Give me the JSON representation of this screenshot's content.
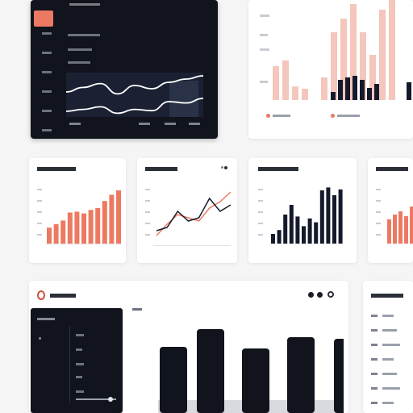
{
  "colors": {
    "accent": "#ec7a62",
    "accent_soft": "#f4c6bc",
    "navy": "#141a2b",
    "dark_panel": "#11141c",
    "background": "#f5f5f6"
  },
  "hero_dark": {
    "line_a": [
      55,
      48,
      42,
      58,
      45,
      50,
      40,
      35,
      30
    ],
    "line_b": [
      85,
      82,
      78,
      88,
      82,
      84,
      70,
      72,
      65
    ]
  },
  "top_right": {
    "soft_bars": [
      30,
      35,
      12,
      10,
      0,
      20,
      60,
      72,
      85,
      60,
      40,
      80,
      90
    ],
    "dark_bars": [
      10,
      25,
      28,
      30,
      25,
      15,
      20
    ]
  },
  "mini_cards": [
    {
      "type": "bar",
      "bars": [
        18,
        22,
        26,
        35,
        36,
        34,
        38,
        40,
        48,
        55,
        60
      ]
    },
    {
      "type": "line",
      "series_a": [
        5,
        12,
        18,
        16,
        14,
        22,
        26,
        32
      ],
      "series_b": [
        8,
        10,
        20,
        14,
        16,
        28,
        20,
        24
      ]
    },
    {
      "type": "bar",
      "bars": [
        10,
        14,
        30,
        40,
        28,
        18,
        26,
        22,
        55,
        58,
        50,
        56
      ]
    },
    {
      "type": "bar",
      "bars": [
        30,
        36,
        40,
        34,
        46
      ]
    }
  ],
  "bottom_panel": {
    "tall_bars": [
      82,
      104,
      80,
      94,
      92
    ],
    "side_items": [
      "",
      "",
      "",
      "",
      "",
      "",
      ""
    ]
  }
}
